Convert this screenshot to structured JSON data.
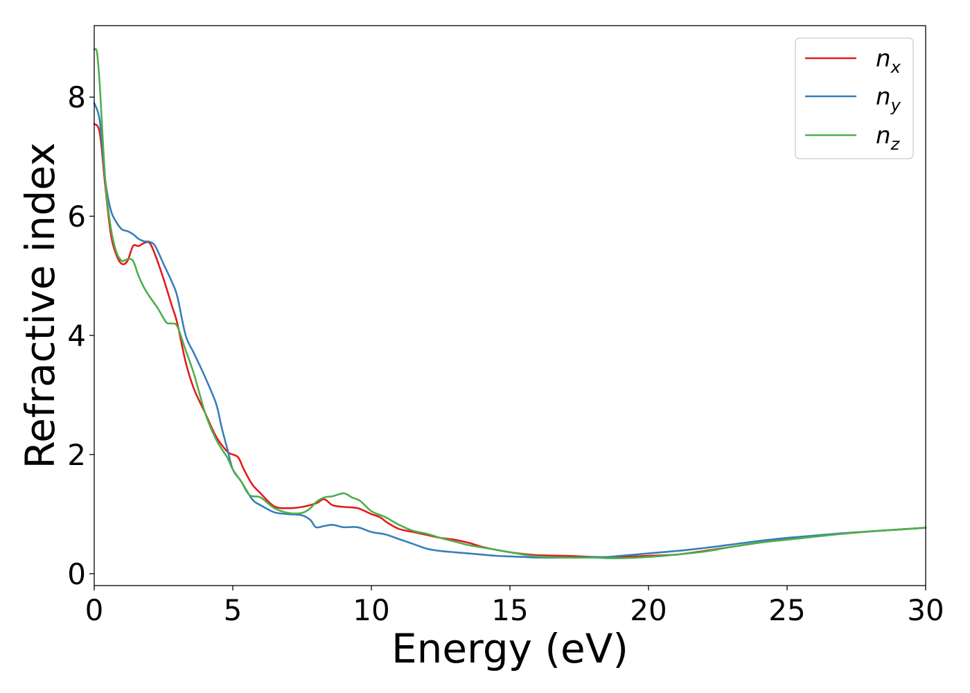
{
  "chart_data": {
    "type": "line",
    "title": "",
    "xlabel": "Energy (eV)",
    "ylabel": "Refractive index",
    "xlim": [
      0,
      30
    ],
    "ylim": [
      -0.2,
      9.2
    ],
    "xticks": [
      0,
      5,
      10,
      15,
      20,
      25,
      30
    ],
    "yticks": [
      0,
      2,
      4,
      6,
      8
    ],
    "grid": false,
    "legend_position": "top-right",
    "series": [
      {
        "name": "n_x",
        "label_base": "n",
        "label_sub": "x",
        "color": "#e41a1c",
        "x": [
          0,
          0.2,
          0.4,
          0.6,
          0.8,
          1.0,
          1.2,
          1.4,
          1.6,
          1.8,
          2.0,
          2.2,
          2.5,
          2.8,
          3.0,
          3.3,
          3.6,
          4.0,
          4.4,
          4.8,
          5.0,
          5.2,
          5.4,
          5.7,
          6.0,
          6.5,
          7.0,
          7.5,
          8.0,
          8.3,
          8.6,
          9.0,
          9.5,
          10.0,
          10.3,
          10.6,
          11.0,
          11.5,
          12.0,
          12.5,
          13.0,
          13.5,
          14.0,
          14.5,
          15.0,
          15.5,
          16.0,
          17.0,
          18.0,
          18.5,
          19.0,
          20.0,
          21.0,
          22.0,
          23.0,
          24.0,
          25.0,
          26.0,
          27.0,
          28.0,
          29.0,
          30.0
        ],
        "y": [
          7.55,
          7.4,
          6.5,
          5.7,
          5.35,
          5.2,
          5.25,
          5.5,
          5.5,
          5.55,
          5.55,
          5.35,
          4.95,
          4.5,
          4.2,
          3.55,
          3.1,
          2.7,
          2.3,
          2.05,
          2.0,
          1.95,
          1.75,
          1.5,
          1.35,
          1.13,
          1.1,
          1.12,
          1.18,
          1.25,
          1.15,
          1.12,
          1.1,
          1.0,
          0.95,
          0.85,
          0.75,
          0.7,
          0.65,
          0.6,
          0.57,
          0.52,
          0.45,
          0.4,
          0.36,
          0.33,
          0.31,
          0.3,
          0.28,
          0.27,
          0.28,
          0.3,
          0.32,
          0.38,
          0.45,
          0.52,
          0.58,
          0.63,
          0.67,
          0.71,
          0.74,
          0.77
        ]
      },
      {
        "name": "n_y",
        "label_base": "n",
        "label_sub": "y",
        "color": "#377eb8",
        "x": [
          0,
          0.2,
          0.4,
          0.6,
          0.8,
          1.0,
          1.2,
          1.4,
          1.6,
          1.8,
          2.0,
          2.2,
          2.5,
          2.8,
          3.0,
          3.3,
          3.6,
          4.0,
          4.4,
          4.6,
          4.8,
          5.0,
          5.3,
          5.7,
          6.0,
          6.5,
          7.0,
          7.5,
          7.8,
          8.0,
          8.3,
          8.6,
          9.0,
          9.5,
          10.0,
          10.5,
          11.0,
          11.5,
          12.0,
          12.5,
          13.0,
          13.5,
          14.0,
          14.5,
          15.0,
          15.5,
          16.0,
          17.0,
          18.0,
          18.5,
          19.0,
          20.0,
          21.0,
          22.0,
          23.0,
          24.0,
          25.0,
          26.0,
          27.0,
          28.0,
          29.0,
          30.0
        ],
        "y": [
          7.9,
          7.6,
          6.6,
          6.1,
          5.9,
          5.78,
          5.75,
          5.7,
          5.62,
          5.58,
          5.57,
          5.5,
          5.2,
          4.9,
          4.65,
          4.0,
          3.7,
          3.3,
          2.85,
          2.45,
          2.1,
          1.75,
          1.55,
          1.25,
          1.15,
          1.03,
          1.0,
          0.98,
          0.9,
          0.78,
          0.8,
          0.82,
          0.78,
          0.78,
          0.7,
          0.66,
          0.58,
          0.5,
          0.42,
          0.38,
          0.36,
          0.34,
          0.32,
          0.3,
          0.29,
          0.28,
          0.27,
          0.27,
          0.28,
          0.28,
          0.3,
          0.34,
          0.38,
          0.43,
          0.49,
          0.55,
          0.6,
          0.64,
          0.68,
          0.71,
          0.74,
          0.77
        ]
      },
      {
        "name": "n_z",
        "label_base": "n",
        "label_sub": "z",
        "color": "#4daf4a",
        "x": [
          0,
          0.1,
          0.2,
          0.4,
          0.6,
          0.8,
          1.0,
          1.2,
          1.4,
          1.6,
          1.8,
          2.0,
          2.3,
          2.6,
          2.8,
          3.0,
          3.3,
          3.6,
          4.0,
          4.4,
          4.8,
          5.0,
          5.3,
          5.6,
          6.0,
          6.5,
          7.0,
          7.5,
          7.8,
          8.0,
          8.3,
          8.6,
          9.0,
          9.3,
          9.6,
          10.0,
          10.5,
          11.0,
          11.5,
          12.0,
          12.5,
          13.0,
          13.5,
          14.0,
          14.5,
          15.0,
          15.5,
          16.0,
          17.0,
          18.0,
          18.5,
          19.0,
          20.0,
          21.0,
          22.0,
          23.0,
          24.0,
          25.0,
          26.0,
          27.0,
          28.0,
          29.0,
          30.0
        ],
        "y": [
          8.8,
          8.75,
          8.2,
          6.6,
          5.8,
          5.4,
          5.25,
          5.28,
          5.25,
          5.0,
          4.8,
          4.65,
          4.45,
          4.22,
          4.2,
          4.15,
          3.75,
          3.35,
          2.7,
          2.25,
          1.95,
          1.75,
          1.55,
          1.32,
          1.28,
          1.1,
          1.02,
          1.02,
          1.1,
          1.2,
          1.28,
          1.3,
          1.35,
          1.28,
          1.22,
          1.05,
          0.95,
          0.82,
          0.72,
          0.67,
          0.6,
          0.54,
          0.48,
          0.44,
          0.4,
          0.36,
          0.32,
          0.29,
          0.27,
          0.27,
          0.26,
          0.26,
          0.28,
          0.32,
          0.37,
          0.45,
          0.52,
          0.57,
          0.62,
          0.67,
          0.71,
          0.74,
          0.77
        ]
      }
    ]
  }
}
